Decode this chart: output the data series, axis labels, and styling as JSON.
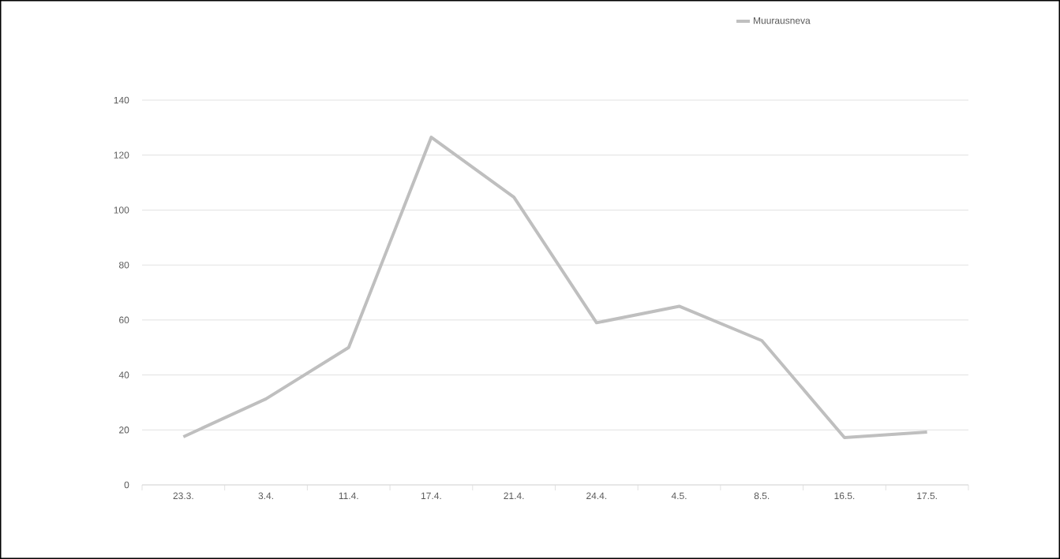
{
  "chart_data": {
    "type": "line",
    "categories": [
      "23.3.",
      "3.4.",
      "11.4.",
      "17.4.",
      "21.4.",
      "24.4.",
      "4.5.",
      "8.5.",
      "16.5.",
      "17.5."
    ],
    "series": [
      {
        "name": "Muurausneva",
        "color": "#bfbfbf",
        "values": [
          17.5,
          31.3,
          50,
          126.5,
          104.7,
          59,
          65,
          52.5,
          17.2,
          19.2
        ]
      }
    ],
    "ylim": [
      0,
      140
    ],
    "yticks": [
      0,
      20,
      40,
      60,
      80,
      100,
      120,
      140
    ],
    "grid": "y",
    "legend": "top",
    "marker": "none",
    "line_style": "solid"
  }
}
